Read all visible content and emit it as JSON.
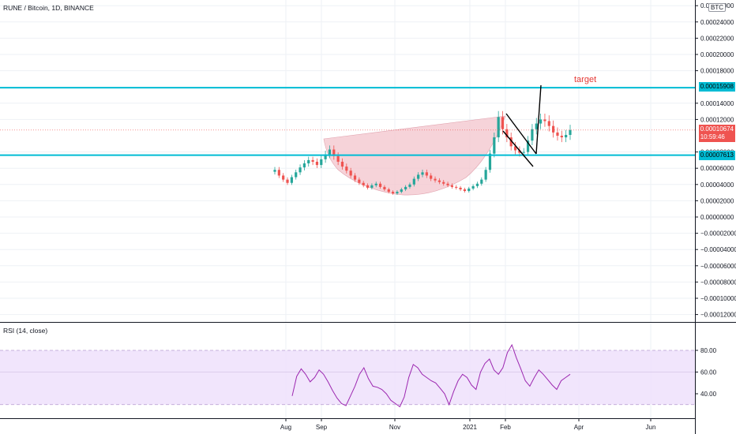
{
  "header": {
    "symbol_title": "RUNE / Bitcoin, 1D, BINANCE",
    "currency": "BTC"
  },
  "annotation": {
    "target_label": "target"
  },
  "price_axis": {
    "ticks": [
      "0.00026000",
      "0.00024000",
      "0.00022000",
      "0.00020000",
      "0.00018000",
      "0.00014000",
      "0.00012000",
      "0.00008000",
      "0.00006000",
      "0.00004000",
      "0.00002000",
      "0.00000000",
      "−0.00002000",
      "−0.00004000",
      "−0.00006000",
      "−0.00008000",
      "−0.00010000",
      "−0.00012000"
    ],
    "tick_values": [
      0.00026,
      0.00024,
      0.00022,
      0.0002,
      0.00018,
      0.00014,
      0.00012,
      8e-05,
      6e-05,
      4e-05,
      2e-05,
      0,
      -2e-05,
      -4e-05,
      -6e-05,
      -8e-05,
      -0.0001,
      -0.00012
    ],
    "upper_line_label": "0.00015908",
    "lower_line_label": "0.00007613",
    "last_price_label": "0.00010674",
    "countdown_label": "10:59:46"
  },
  "rsi_panel": {
    "title": "RSI (14, close)",
    "ticks": [
      "80.00",
      "60.00",
      "40.00"
    ],
    "tick_values": [
      80,
      60,
      40
    ]
  },
  "time_axis": {
    "labels": [
      "Aug",
      "Sep",
      "Nov",
      "2021",
      "Feb",
      "Apr",
      "Jun"
    ]
  },
  "colors": {
    "accent_line": "#00bcd4",
    "up_candle": "#26a69a",
    "down_candle": "#ef5350",
    "cup_fill": "#f3c4cc",
    "rsi_line": "#9c27b0",
    "rsi_band": "#efe0fb",
    "target_text": "#e53935"
  },
  "chart_data": {
    "type": "candlestick",
    "price_series_close": [
      5.8e-05,
      5.1e-05,
      4.6e-05,
      4.2e-05,
      4.9e-05,
      5.5e-05,
      6.1e-05,
      6.6e-05,
      7e-05,
      6.8e-05,
      6.4e-05,
      7.1e-05,
      7.7e-05,
      8.3e-05,
      7.5e-05,
      6.8e-05,
      6.2e-05,
      5.7e-05,
      5.1e-05,
      4.6e-05,
      4.2e-05,
      3.9e-05,
      3.6e-05,
      3.9e-05,
      4.1e-05,
      3.7e-05,
      3.4e-05,
      3.1e-05,
      2.9e-05,
      3.1e-05,
      3.4e-05,
      3.7e-05,
      4e-05,
      4.7e-05,
      5.2e-05,
      5.5e-05,
      5.1e-05,
      4.7e-05,
      4.5e-05,
      4.3e-05,
      4.1e-05,
      3.9e-05,
      3.7e-05,
      3.6e-05,
      3.4e-05,
      3.2e-05,
      3.5e-05,
      3.8e-05,
      4.1e-05,
      4.6e-05,
      5.8e-05,
      7.8e-05,
      9.8e-05,
      0.000123,
      0.000108,
      9.8e-05,
      8.7e-05,
      8.2e-05,
      7.9e-05,
      8e-05,
      9.4e-05,
      0.000108,
      0.000115,
      0.00012,
      0.000118,
      0.000112,
      0.000104,
      0.0001,
      9.8e-05,
      0.000101,
      0.000107
    ],
    "rsi_series": [
      38,
      56,
      63,
      58,
      51,
      55,
      62,
      58,
      51,
      43,
      36,
      31,
      29,
      38,
      47,
      58,
      64,
      54,
      47,
      46,
      44,
      40,
      34,
      31,
      28,
      37,
      55,
      67,
      64,
      58,
      55,
      52,
      50,
      45,
      40,
      30,
      42,
      52,
      58,
      55,
      48,
      44,
      60,
      68,
      72,
      62,
      58,
      64,
      78,
      85,
      73,
      63,
      52,
      47,
      55,
      62,
      58,
      53,
      48,
      44,
      52,
      55,
      58
    ],
    "ylim": [
      -0.00012,
      0.00026
    ],
    "rsi_ylim": [
      28,
      85
    ],
    "upper_level": 0.00015908,
    "lower_level": 7.613e-05
  }
}
